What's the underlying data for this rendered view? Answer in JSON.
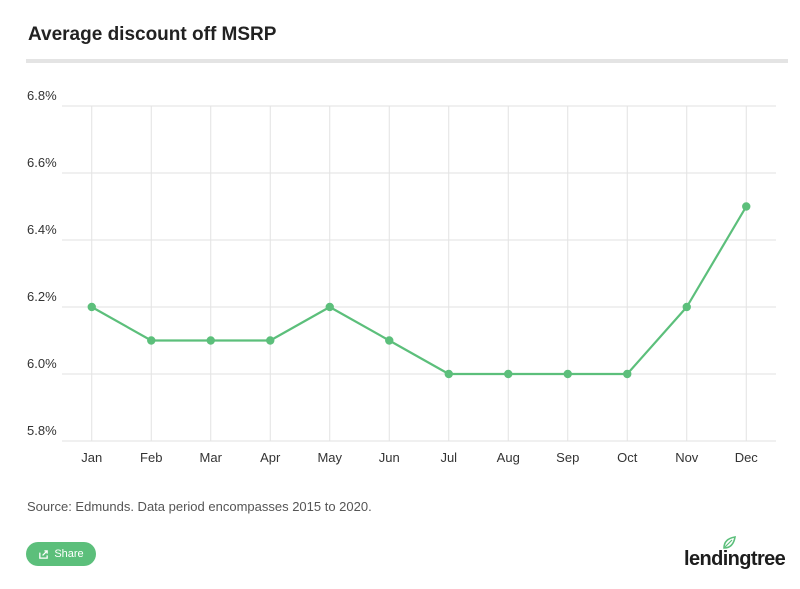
{
  "chart_data": {
    "type": "line",
    "title": "Average discount off MSRP",
    "categories": [
      "Jan",
      "Feb",
      "Mar",
      "Apr",
      "May",
      "Jun",
      "Jul",
      "Aug",
      "Sep",
      "Oct",
      "Nov",
      "Dec"
    ],
    "series": [
      {
        "name": "Average discount off MSRP",
        "values": [
          6.2,
          6.1,
          6.1,
          6.1,
          6.2,
          6.1,
          6.0,
          6.0,
          6.0,
          6.0,
          6.2,
          6.5
        ]
      }
    ],
    "ylim": [
      5.8,
      6.8
    ],
    "yticks": [
      5.8,
      6.0,
      6.2,
      6.4,
      6.6,
      6.8
    ],
    "ytick_labels": [
      "5.8%",
      "6.0%",
      "6.2%",
      "6.4%",
      "6.6%",
      "6.8%"
    ],
    "xlabel": "",
    "ylabel": "",
    "grid": true,
    "line_color": "#5cbf7b"
  },
  "footer": {
    "source": "Source: Edmunds. Data period encompasses 2015 to 2020.",
    "share_label": "Share",
    "logo_text": "lendingtree",
    "accent_color": "#5cbf7b"
  }
}
